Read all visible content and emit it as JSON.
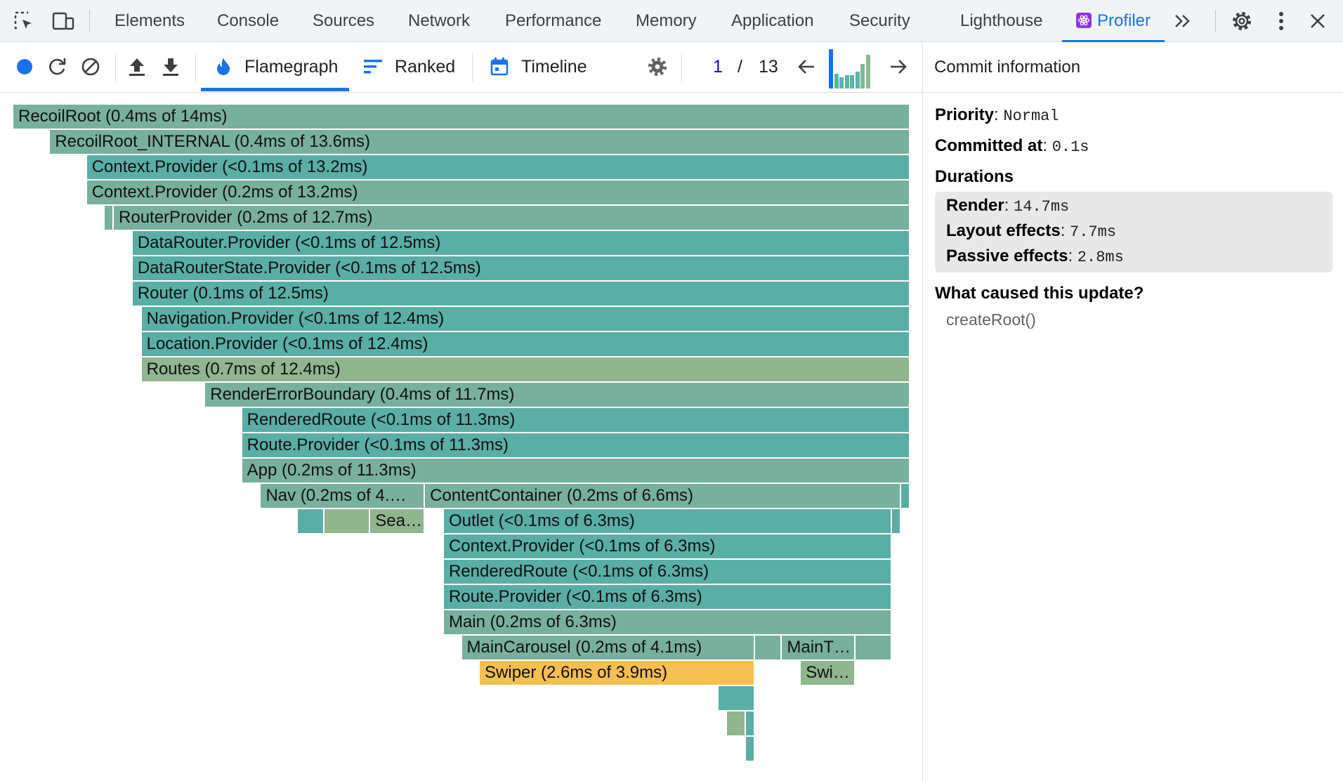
{
  "devtools_tabs": [
    {
      "label": "Elements",
      "active": false
    },
    {
      "label": "Console",
      "active": false
    },
    {
      "label": "Sources",
      "active": false
    },
    {
      "label": "Network",
      "active": false
    },
    {
      "label": "Performance",
      "active": false
    },
    {
      "label": "Memory",
      "active": false
    },
    {
      "label": "Application",
      "active": false
    },
    {
      "label": "Security",
      "active": false
    },
    {
      "label": "Lighthouse",
      "active": false
    },
    {
      "label": "Profiler",
      "active": true
    }
  ],
  "devtools_icons": [
    "inspect-element-icon",
    "device-toolbar-icon",
    "more-tabs-icon",
    "settings-gear-icon",
    "kebab-menu-icon",
    "close-icon"
  ],
  "toolbar": {
    "tabs": [
      {
        "label": "Flamegraph",
        "icon": "flame-icon",
        "active": true
      },
      {
        "label": "Ranked",
        "icon": "ranked-bars-icon",
        "active": false
      },
      {
        "label": "Timeline",
        "icon": "calendar-icon",
        "active": false
      }
    ],
    "commit_current": "1",
    "commit_separator": "/",
    "commit_total": "13",
    "commit_chart_levels": [
      1.0,
      0.38,
      0.28,
      0.34,
      0.34,
      0.42,
      0.62,
      0.86
    ],
    "commit_chart_colors": [
      "#1a73e8",
      "#5fb3a8",
      "#5fb3a8",
      "#5fb3a8",
      "#5fb3a8",
      "#5fb3a8",
      "#7fb89a",
      "#8fb88e"
    ]
  },
  "side_panel": {
    "header": "Commit information",
    "priority_label": "Priority",
    "priority_value": "Normal",
    "committed_label": "Committed at",
    "committed_value": "0.1s",
    "durations_label": "Durations",
    "render_label": "Render",
    "render_value": "14.7ms",
    "layout_label": "Layout effects",
    "layout_value": "7.7ms",
    "passive_label": "Passive effects",
    "passive_value": "2.8ms",
    "cause_label": "What caused this update?",
    "cause_value": "createRoot()"
  },
  "colors": {
    "accent": "#1a73e8",
    "teal": "#5aaea6",
    "sage": "#79b09d",
    "olive": "#90b58f",
    "swiper": "#f6bf53"
  },
  "flamegraph": [
    {
      "row": 0,
      "start": 0.0,
      "end": 1.0,
      "label": "RecoilRoot (0.4ms of 14ms)",
      "color": "sage"
    },
    {
      "row": 1,
      "start": 0.041,
      "end": 1.0,
      "label": "RecoilRoot_INTERNAL (0.4ms of 13.6ms)",
      "color": "sage"
    },
    {
      "row": 2,
      "start": 0.082,
      "end": 1.0,
      "label": "Context.Provider (<0.1ms of 13.2ms)",
      "color": "teal"
    },
    {
      "row": 3,
      "start": 0.082,
      "end": 1.0,
      "label": "Context.Provider (0.2ms of 13.2ms)",
      "color": "sage"
    },
    {
      "row": 4,
      "start": 0.102,
      "end": 0.112,
      "label": "",
      "color": "sage"
    },
    {
      "row": 4,
      "start": 0.112,
      "end": 1.0,
      "label": "RouterProvider (0.2ms of 12.7ms)",
      "color": "sage"
    },
    {
      "row": 5,
      "start": 0.133,
      "end": 1.0,
      "label": "DataRouter.Provider (<0.1ms of 12.5ms)",
      "color": "teal"
    },
    {
      "row": 6,
      "start": 0.133,
      "end": 1.0,
      "label": "DataRouterState.Provider (<0.1ms of 12.5ms)",
      "color": "teal"
    },
    {
      "row": 7,
      "start": 0.133,
      "end": 1.0,
      "label": "Router (0.1ms of 12.5ms)",
      "color": "teal"
    },
    {
      "row": 8,
      "start": 0.143,
      "end": 1.0,
      "label": "Navigation.Provider (<0.1ms of 12.4ms)",
      "color": "teal"
    },
    {
      "row": 9,
      "start": 0.143,
      "end": 1.0,
      "label": "Location.Provider (<0.1ms of 12.4ms)",
      "color": "teal"
    },
    {
      "row": 10,
      "start": 0.143,
      "end": 1.0,
      "label": "Routes (0.7ms of 12.4ms)",
      "color": "olive"
    },
    {
      "row": 11,
      "start": 0.214,
      "end": 1.0,
      "label": "RenderErrorBoundary (0.4ms of 11.7ms)",
      "color": "sage"
    },
    {
      "row": 12,
      "start": 0.255,
      "end": 1.0,
      "label": "RenderedRoute (<0.1ms of 11.3ms)",
      "color": "teal"
    },
    {
      "row": 13,
      "start": 0.255,
      "end": 1.0,
      "label": "Route.Provider (<0.1ms of 11.3ms)",
      "color": "teal"
    },
    {
      "row": 14,
      "start": 0.255,
      "end": 1.0,
      "label": "App (0.2ms of 11.3ms)",
      "color": "sage"
    },
    {
      "row": 15,
      "start": 0.276,
      "end": 0.459,
      "label": "Nav (0.2ms of 4.…",
      "color": "sage"
    },
    {
      "row": 15,
      "start": 0.459,
      "end": 0.99,
      "label": "ContentContainer (0.2ms of 6.6ms)",
      "color": "sage"
    },
    {
      "row": 15,
      "start": 0.99,
      "end": 1.0,
      "label": "",
      "color": "teal"
    },
    {
      "row": 16,
      "start": 0.317,
      "end": 0.347,
      "label": "",
      "color": "teal"
    },
    {
      "row": 16,
      "start": 0.347,
      "end": 0.398,
      "label": "",
      "color": "olive"
    },
    {
      "row": 16,
      "start": 0.398,
      "end": 0.459,
      "label": "Sea…",
      "color": "olive"
    },
    {
      "row": 16,
      "start": 0.48,
      "end": 0.98,
      "label": "Outlet (<0.1ms of 6.3ms)",
      "color": "teal"
    },
    {
      "row": 16,
      "start": 0.98,
      "end": 0.99,
      "label": "",
      "color": "teal"
    },
    {
      "row": 17,
      "start": 0.48,
      "end": 0.98,
      "label": "Context.Provider (<0.1ms of 6.3ms)",
      "color": "teal"
    },
    {
      "row": 18,
      "start": 0.48,
      "end": 0.98,
      "label": "RenderedRoute (<0.1ms of 6.3ms)",
      "color": "teal"
    },
    {
      "row": 19,
      "start": 0.48,
      "end": 0.98,
      "label": "Route.Provider (<0.1ms of 6.3ms)",
      "color": "teal"
    },
    {
      "row": 20,
      "start": 0.48,
      "end": 0.98,
      "label": "Main (0.2ms of 6.3ms)",
      "color": "sage"
    },
    {
      "row": 21,
      "start": 0.5,
      "end": 0.827,
      "label": "MainCarousel (0.2ms of 4.1ms)",
      "color": "sage"
    },
    {
      "row": 21,
      "start": 0.827,
      "end": 0.857,
      "label": "",
      "color": "sage"
    },
    {
      "row": 21,
      "start": 0.857,
      "end": 0.939,
      "label": "MainT…",
      "color": "sage"
    },
    {
      "row": 21,
      "start": 0.939,
      "end": 0.98,
      "label": "",
      "color": "sage"
    },
    {
      "row": 22,
      "start": 0.52,
      "end": 0.827,
      "label": "Swiper (2.6ms of 3.9ms)",
      "color": "swiper"
    },
    {
      "row": 22,
      "start": 0.878,
      "end": 0.939,
      "label": "Swi…",
      "color": "olive"
    },
    {
      "row": 23,
      "start": 0.786,
      "end": 0.827,
      "label": "",
      "color": "teal"
    },
    {
      "row": 24,
      "start": 0.796,
      "end": 0.817,
      "label": "",
      "color": "olive"
    },
    {
      "row": 24,
      "start": 0.817,
      "end": 0.827,
      "label": "",
      "color": "teal"
    },
    {
      "row": 25,
      "start": 0.817,
      "end": 0.827,
      "label": "",
      "color": "teal"
    }
  ]
}
